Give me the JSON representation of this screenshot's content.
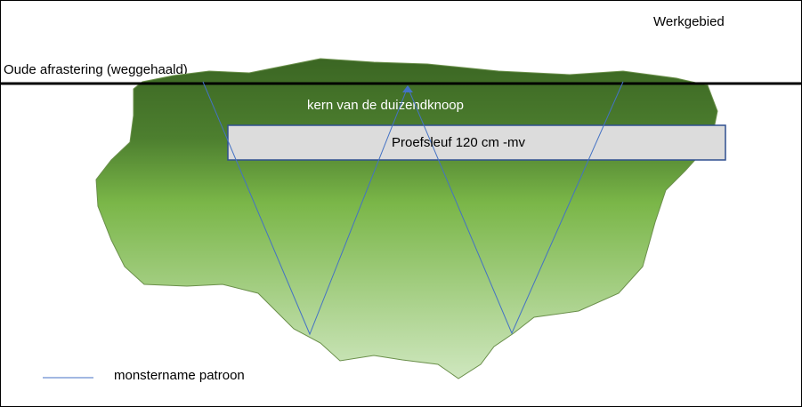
{
  "labels": {
    "area": "Werkgebied",
    "fence": "Oude afrastering (weggehaald)",
    "core": "kern van de duizendknoop",
    "trench": "Proefsleuf 120 cm -mv"
  },
  "legend": {
    "sampling_pattern": "monstername patroon"
  }
}
